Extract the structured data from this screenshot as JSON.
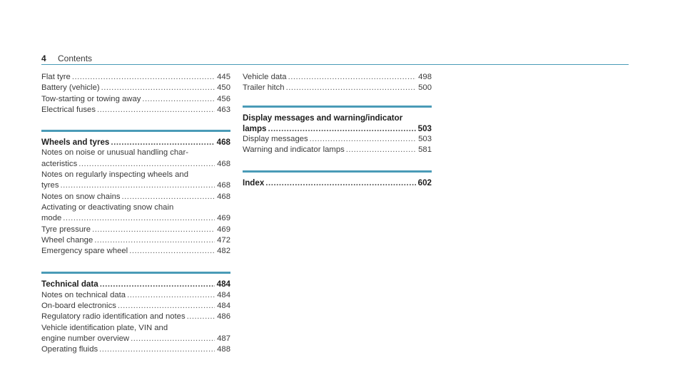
{
  "header": {
    "page_number": "4",
    "title": "Contents"
  },
  "left_column": {
    "top_entries": [
      {
        "label": "Flat tyre",
        "page": "445"
      },
      {
        "label": "Battery (vehicle)",
        "page": "450"
      },
      {
        "label": "Tow-starting or towing away",
        "page": "456"
      },
      {
        "label": "Electrical fuses",
        "page": "463"
      }
    ],
    "wheels": {
      "heading": "Wheels and tyres",
      "page": "468",
      "entries": [
        {
          "lines": [
            "Notes on noise or unusual handling char-"
          ],
          "label": "acteristics",
          "page": "468"
        },
        {
          "lines": [
            "Notes on regularly inspecting wheels and"
          ],
          "label": "tyres",
          "page": "468"
        },
        {
          "lines": [],
          "label": "Notes on snow chains",
          "page": "468"
        },
        {
          "lines": [
            "Activating or deactivating snow chain"
          ],
          "label": "mode",
          "page": "469"
        },
        {
          "lines": [],
          "label": "Tyre pressure",
          "page": "469"
        },
        {
          "lines": [],
          "label": "Wheel change",
          "page": "472"
        },
        {
          "lines": [],
          "label": "Emergency spare wheel",
          "page": "482"
        }
      ]
    },
    "technical": {
      "heading": "Technical data",
      "page": "484",
      "entries": [
        {
          "lines": [],
          "label": "Notes on technical data",
          "page": "484"
        },
        {
          "lines": [],
          "label": "On-board electronics",
          "page": "484"
        },
        {
          "lines": [],
          "label": "Regulatory radio identification and notes",
          "page": "486"
        },
        {
          "lines": [
            "Vehicle identification plate, VIN and"
          ],
          "label": "engine number overview",
          "page": "487"
        },
        {
          "lines": [],
          "label": "Operating fluids",
          "page": "488"
        }
      ]
    }
  },
  "right_column": {
    "top_entries": [
      {
        "label": "Vehicle data",
        "page": "498"
      },
      {
        "label": "Trailer hitch",
        "page": "500"
      }
    ],
    "display": {
      "heading_line1": "Display messages and warning/indicator",
      "heading": "lamps",
      "page": "503",
      "entries": [
        {
          "lines": [],
          "label": "Display messages",
          "page": "503"
        },
        {
          "lines": [],
          "label": "Warning and indicator lamps",
          "page": "581"
        }
      ]
    },
    "index": {
      "heading": "Index",
      "page": "602"
    }
  }
}
